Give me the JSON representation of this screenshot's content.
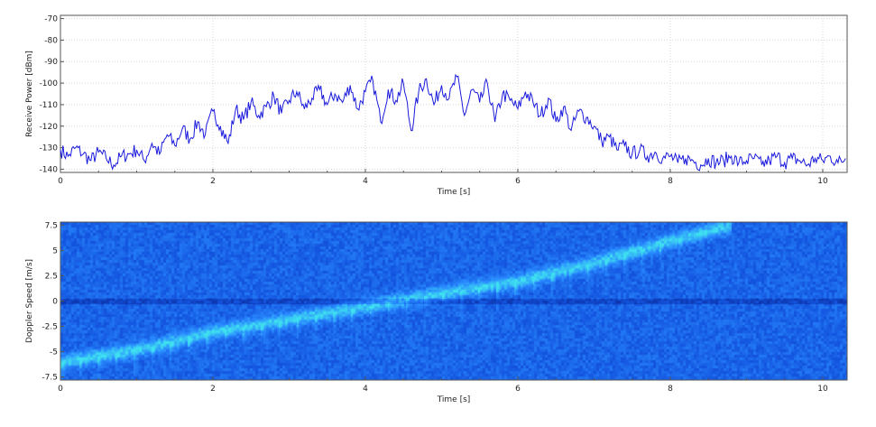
{
  "chart_data": [
    {
      "type": "line",
      "title": "",
      "xlabel": "Time [s]",
      "ylabel": "Receive Power [dBm]",
      "xlim": [
        0,
        10.32
      ],
      "ylim": [
        -141.5,
        -68.5
      ],
      "xticks": [
        0,
        2,
        4,
        6,
        8,
        10
      ],
      "yticks": [
        -70,
        -80,
        -90,
        -100,
        -110,
        -120,
        -130,
        -140
      ],
      "grid": true,
      "series": [
        {
          "name": "Receive Power",
          "color": "#1a1adc",
          "x_start": 0,
          "x_step": 0.1,
          "values": [
            -131,
            -134,
            -130,
            -133,
            -136,
            -132,
            -135,
            -138,
            -134,
            -133,
            -131,
            -136,
            -128,
            -133,
            -124,
            -129,
            -121,
            -126,
            -118,
            -124,
            -113,
            -120,
            -128,
            -112,
            -117,
            -109,
            -115,
            -111,
            -106,
            -114,
            -108,
            -104,
            -112,
            -107,
            -103,
            -110,
            -105,
            -109,
            -101,
            -112,
            -104,
            -99,
            -118,
            -103,
            -108,
            -100,
            -122,
            -104,
            -98,
            -110,
            -101,
            -107,
            -97,
            -115,
            -103,
            -109,
            -100,
            -118,
            -105,
            -108,
            -112,
            -104,
            -109,
            -115,
            -107,
            -118,
            -111,
            -122,
            -113,
            -116,
            -120,
            -127,
            -125,
            -131,
            -129,
            -133,
            -131,
            -134,
            -132,
            -135,
            -134,
            -137,
            -135,
            -136,
            -138,
            -135,
            -137,
            -136,
            -134,
            -137,
            -136,
            -135,
            -138,
            -136,
            -134,
            -137,
            -135,
            -136,
            -138,
            -135,
            -136,
            -134,
            -137,
            -135
          ]
        }
      ]
    },
    {
      "type": "heatmap",
      "title": "",
      "xlabel": "Time [s]",
      "ylabel": "Doppler Speed [m/s]",
      "xlim": [
        0,
        10.32
      ],
      "ylim": [
        -7.8,
        7.8
      ],
      "xticks": [
        0,
        2,
        4,
        6,
        8,
        10
      ],
      "yticks": [
        7.5,
        5,
        2.5,
        0,
        -2.5,
        -5,
        -7.5
      ],
      "ytick_labels": [
        "7.5",
        "5",
        "2.5",
        "0",
        "-2.5",
        "-5",
        "-7.5"
      ],
      "colormap": [
        "#0a2a9c",
        "#1456e0",
        "#2a8cff",
        "#3fe0f0"
      ],
      "doppler_ridge": [
        [
          0,
          -6
        ],
        [
          1,
          -4.8
        ],
        [
          2,
          -3
        ],
        [
          3,
          -1.8
        ],
        [
          4,
          -0.5
        ],
        [
          5,
          0.8
        ],
        [
          6,
          2
        ],
        [
          7,
          3.8
        ],
        [
          8,
          6
        ],
        [
          8.8,
          7.5
        ]
      ],
      "zero_doppler_line": 0
    }
  ]
}
